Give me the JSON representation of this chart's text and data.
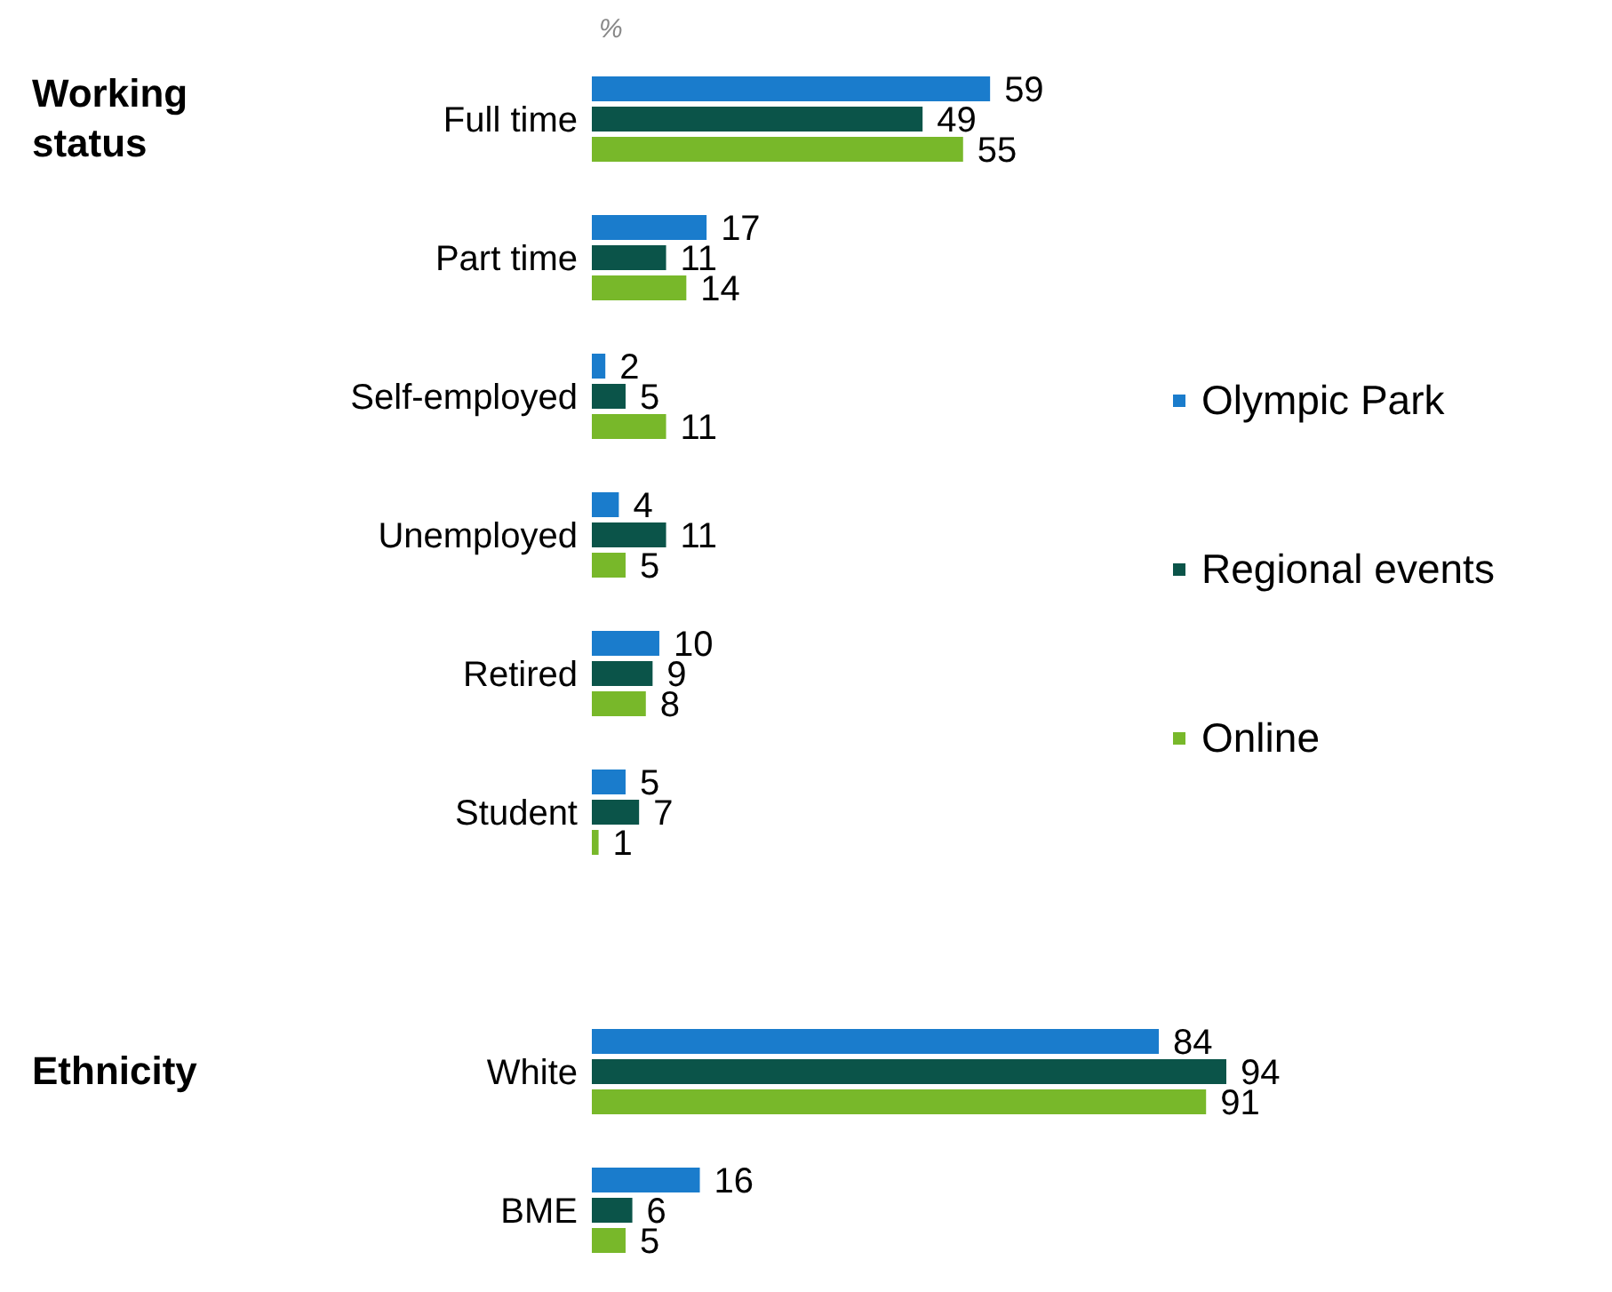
{
  "chart_data": [
    {
      "type": "bar",
      "orientation": "horizontal",
      "ylabel": "Working status",
      "xlabel": "%",
      "categories": [
        "Full time",
        "Part time",
        "Self-employed",
        "Unemployed",
        "Retired",
        "Student"
      ],
      "series": [
        {
          "name": "Olympic Park",
          "color": "#1a7ccc",
          "values": [
            59,
            17,
            2,
            4,
            10,
            5
          ]
        },
        {
          "name": "Regional events",
          "color": "#0b5449",
          "values": [
            49,
            11,
            5,
            11,
            9,
            7
          ]
        },
        {
          "name": "Online",
          "color": "#78b82a",
          "values": [
            55,
            14,
            11,
            5,
            8,
            1
          ]
        }
      ],
      "data_labels": true,
      "legend": "right",
      "tick_labels": "y"
    },
    {
      "type": "bar",
      "orientation": "horizontal",
      "ylabel": "Ethnicity",
      "categories": [
        "White",
        "BME"
      ],
      "series": [
        {
          "color": "#1a7ccc",
          "values": [
            84,
            16
          ]
        },
        {
          "color": "#0b5449",
          "values": [
            94,
            6
          ]
        },
        {
          "color": "#78b82a",
          "values": [
            91,
            5
          ]
        }
      ],
      "data_labels": true,
      "tick_labels": "y"
    }
  ]
}
